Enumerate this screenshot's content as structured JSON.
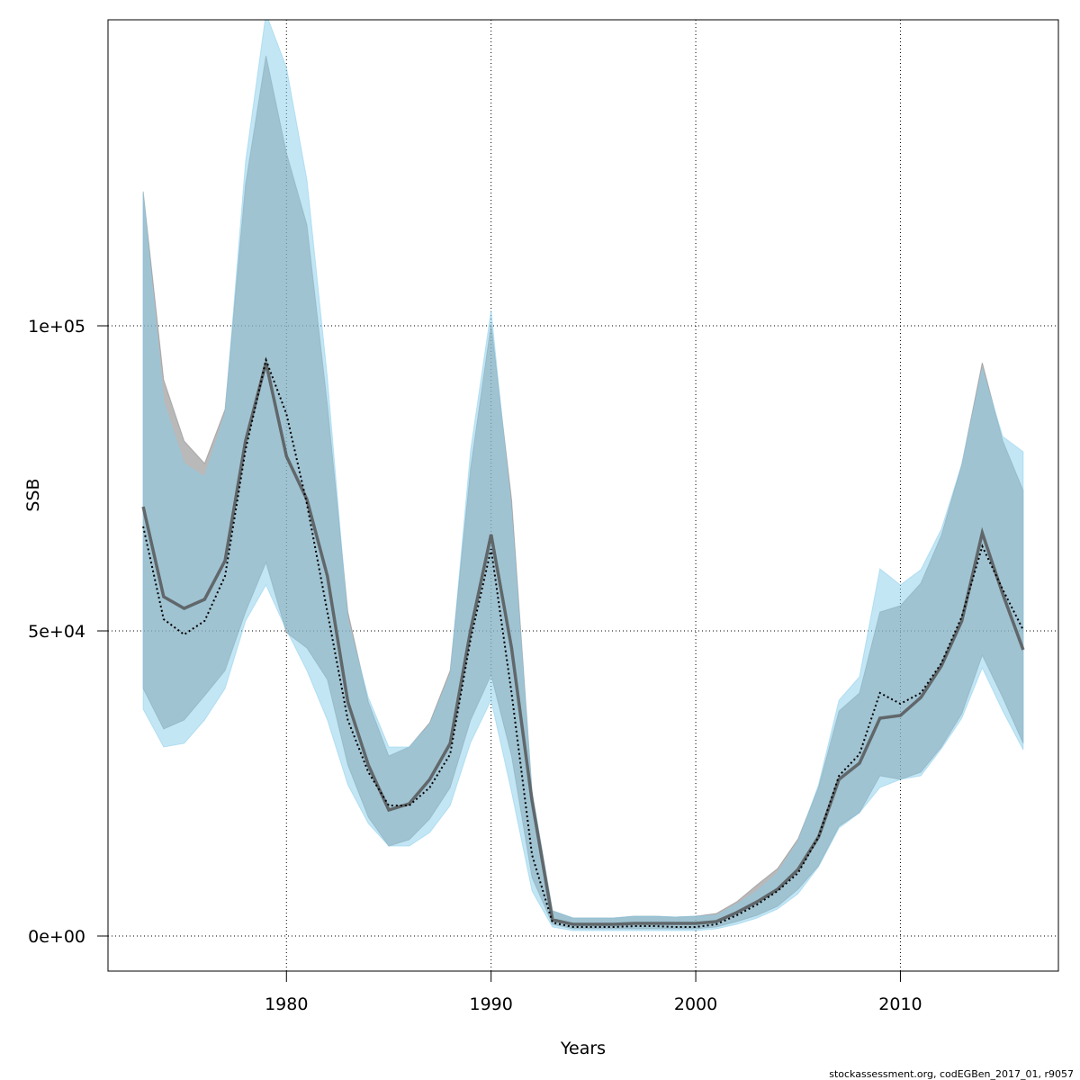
{
  "chart_data": {
    "type": "band-line",
    "xlabel": "Years",
    "ylabel": "SSB",
    "footnote": "stockassessment.org, codEGBen_2017_01, r9057",
    "x": [
      1973,
      1974,
      1975,
      1976,
      1977,
      1978,
      1979,
      1980,
      1981,
      1982,
      1983,
      1984,
      1985,
      1986,
      1987,
      1988,
      1989,
      1990,
      1991,
      1992,
      1993,
      1994,
      1995,
      1996,
      1997,
      1998,
      1999,
      2000,
      2001,
      2002,
      2003,
      2004,
      2005,
      2006,
      2007,
      2008,
      2009,
      2010,
      2011,
      2012,
      2013,
      2014,
      2015,
      2016
    ],
    "xlim": [
      1971.28,
      2017.72
    ],
    "xticks": [
      1980,
      1990,
      2000,
      2010
    ],
    "ylim": [
      -5750,
      150150
    ],
    "yticks": [
      {
        "value": 0,
        "label": "0e+00"
      },
      {
        "value": 50000,
        "label": "5e+04"
      },
      {
        "value": 100000,
        "label": "1e+05"
      }
    ],
    "grid": true,
    "series": [
      {
        "color": "#808080",
        "line_style": "solid",
        "values": [
          70360,
          55600,
          53690,
          55170,
          61510,
          81130,
          93960,
          78620,
          71540,
          59000,
          38350,
          28030,
          20650,
          21680,
          25670,
          31570,
          50150,
          65790,
          47200,
          22130,
          2660,
          1920,
          1920,
          1920,
          2070,
          2070,
          2070,
          2070,
          2360,
          3840,
          5610,
          7670,
          10920,
          16230,
          25670,
          28320,
          35700,
          36140,
          39090,
          44250,
          51630,
          66080,
          56050,
          46910
        ],
        "upper": [
          122000,
          91160,
          81130,
          77440,
          86290,
          123160,
          144260,
          128330,
          116530,
          87030,
          53100,
          38350,
          29500,
          30980,
          34960,
          43510,
          76700,
          100300,
          71540,
          23600,
          4130,
          2950,
          2950,
          2950,
          3250,
          3250,
          3100,
          3250,
          3690,
          5610,
          8410,
          11060,
          15930,
          24340,
          36880,
          39830,
          53100,
          54130,
          57820,
          65640,
          77290,
          93960,
          81130,
          73010
        ],
        "lower": [
          40560,
          33930,
          35400,
          39380,
          43510,
          53100,
          61210,
          49710,
          47200,
          42040,
          28030,
          19470,
          14750,
          15780,
          19180,
          24340,
          35400,
          42780,
          29500,
          9590,
          1920,
          1180,
          1180,
          1180,
          1180,
          1180,
          1180,
          1180,
          1475,
          2360,
          3390,
          4870,
          7670,
          11510,
          18000,
          20210,
          26260,
          25670,
          26850,
          30980,
          36430,
          46020,
          39090,
          31570
        ]
      },
      {
        "color": "#87ceeb",
        "line_style": "dotted",
        "values": [
          67110,
          51920,
          49410,
          51630,
          59000,
          79650,
          94400,
          85550,
          70800,
          53100,
          35400,
          26850,
          21390,
          21390,
          24340,
          29800,
          48680,
          63430,
          39830,
          13280,
          2210,
          1475,
          1475,
          1475,
          1620,
          1620,
          1475,
          1475,
          1920,
          3390,
          5160,
          7380,
          10330,
          16230,
          26260,
          29800,
          39830,
          38060,
          39830,
          44690,
          52360,
          63870,
          56790,
          50150
        ],
        "upper": [
          121690,
          87470,
          77440,
          75230,
          85550,
          126850,
          151190,
          142340,
          123900,
          91450,
          51630,
          39090,
          30980,
          30980,
          34660,
          42780,
          79650,
          102510,
          69330,
          23600,
          4130,
          2950,
          2950,
          2950,
          3250,
          3250,
          3100,
          3250,
          3390,
          5160,
          7380,
          10330,
          15490,
          24780,
          38650,
          42480,
          60180,
          57530,
          60030,
          66670,
          77290,
          92930,
          81860,
          79360
        ],
        "lower": [
          37170,
          30980,
          31570,
          35400,
          40560,
          51630,
          57530,
          50150,
          43510,
          35400,
          24780,
          18440,
          14750,
          14750,
          16960,
          21390,
          31710,
          38650,
          23600,
          7380,
          1475,
          890,
          890,
          890,
          890,
          890,
          890,
          890,
          1180,
          1920,
          2950,
          4430,
          6930,
          11360,
          17700,
          20210,
          24340,
          25670,
          26260,
          30680,
          35700,
          43960,
          36880,
          30540
        ]
      }
    ]
  }
}
